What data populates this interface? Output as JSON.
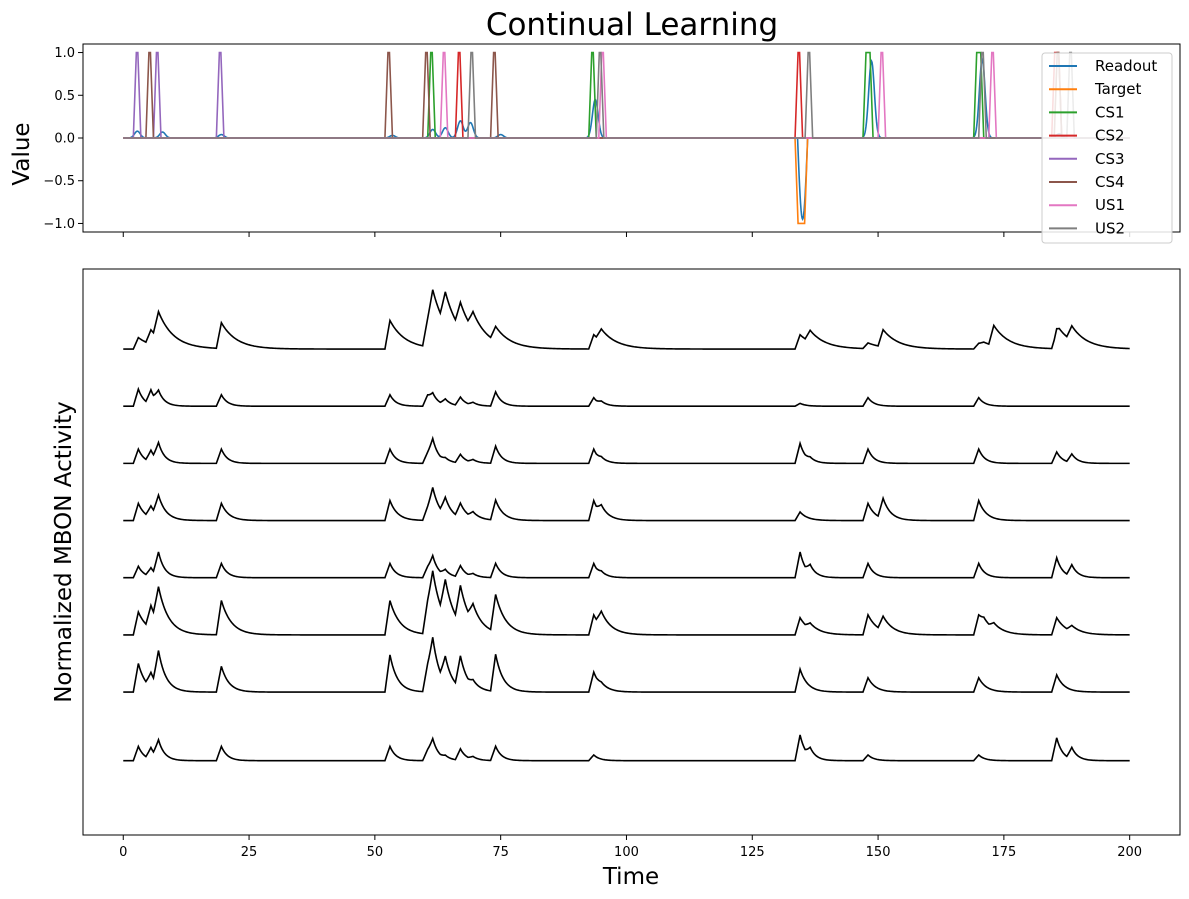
{
  "chart_data": [
    {
      "type": "line",
      "title": "Continual Learning",
      "ylabel": "Value",
      "xlabel": "",
      "xlim": [
        -8,
        210
      ],
      "ylim": [
        -1.1,
        1.1
      ],
      "yticks": [
        1.0,
        0.5,
        0.0,
        -0.5,
        -1.0
      ],
      "ytick_labels": [
        "1.0",
        "0.5",
        "0.0",
        "−0.5",
        "−1.0"
      ],
      "xticks": [
        0,
        25,
        50,
        75,
        100,
        125,
        150,
        175,
        200
      ],
      "show_xtick_labels": false,
      "grid": false,
      "legend": "top-right",
      "series": [
        {
          "name": "Readout",
          "color": "#1f77b4",
          "kind": "readout"
        },
        {
          "name": "Target",
          "color": "#ff7f0e",
          "kind": "target",
          "pulses": [
            [
              133.5,
              136.0,
              -1
            ]
          ]
        },
        {
          "name": "CS1",
          "color": "#2ca02c",
          "pulses": [
            [
              60.5,
              62.0,
              1
            ],
            [
              92.5,
              94.0,
              1
            ],
            [
              147.0,
              149.0,
              1
            ],
            [
              169.0,
              171.0,
              1
            ]
          ]
        },
        {
          "name": "CS2",
          "color": "#d62728",
          "pulses": [
            [
              66.0,
              67.5,
              1
            ],
            [
              133.5,
              135.0,
              1
            ],
            [
              184.5,
              186.5,
              1
            ]
          ]
        },
        {
          "name": "CS3",
          "color": "#9467bd",
          "pulses": [
            [
              2.0,
              3.5,
              1
            ],
            [
              6.0,
              7.5,
              1
            ],
            [
              18.5,
              20.0,
              1
            ]
          ]
        },
        {
          "name": "CS4",
          "color": "#8c564b",
          "pulses": [
            [
              4.5,
              6.0,
              1
            ],
            [
              52.0,
              53.5,
              1
            ],
            [
              59.5,
              61.0,
              1
            ],
            [
              73.0,
              74.5,
              1
            ],
            [
              185.0,
              186.5,
              1
            ]
          ]
        },
        {
          "name": "US1",
          "color": "#e377c2",
          "pulses": [
            [
              63.0,
              64.5,
              1
            ],
            [
              94.5,
              96.0,
              1
            ],
            [
              150.0,
              151.5,
              1
            ],
            [
              172.0,
              173.5,
              1
            ]
          ]
        },
        {
          "name": "US2",
          "color": "#7f7f7f",
          "pulses": [
            [
              68.5,
              70.0,
              1
            ],
            [
              94.0,
              95.5,
              1
            ],
            [
              135.5,
              137.0,
              1
            ],
            [
              170.0,
              171.5,
              1
            ],
            [
              187.5,
              189.0,
              1
            ]
          ]
        }
      ]
    },
    {
      "type": "line",
      "title": "",
      "ylabel": "Normalized MBON Activity",
      "xlabel": "Time",
      "xlim": [
        -8,
        210
      ],
      "xticks": [
        0,
        25,
        50,
        75,
        100,
        125,
        150,
        175,
        200
      ],
      "xtick_labels": [
        "0",
        "25",
        "50",
        "75",
        "100",
        "125",
        "150",
        "175",
        "200"
      ],
      "show_yticks": false,
      "grid": false,
      "line_color": "#000000",
      "events": [
        2,
        4.5,
        6,
        18.5,
        52,
        59.5,
        60.5,
        63,
        66,
        68.5,
        73,
        92.5,
        94,
        133.5,
        135.5,
        147,
        150,
        169,
        170,
        172,
        184.5,
        185,
        187.5
      ],
      "traces": [
        {
          "baseline": 9.0,
          "weights": [
            0.2,
            0.25,
            0.45,
            0.45,
            0.5,
            0.5,
            0.65,
            0.55,
            0.45,
            0.3,
            0.25,
            0.25,
            0.2,
            0.25,
            0.2,
            0.1,
            0.3,
            0.1,
            0.05,
            0.35,
            0.3,
            0.1,
            0.25
          ],
          "tau": 3.0
        },
        {
          "baseline": 8.0,
          "weights": [
            0.3,
            0.25,
            0.2,
            0.2,
            0.2,
            0.2,
            0.15,
            0.1,
            0.15,
            0.05,
            0.25,
            0.15,
            0.05,
            0.05,
            0.0,
            0.15,
            0.0,
            0.15,
            0.0,
            0.0,
            0.0,
            0.0,
            0.0
          ],
          "tau": 1.2
        },
        {
          "baseline": 7.0,
          "weights": [
            0.25,
            0.2,
            0.3,
            0.25,
            0.25,
            0.2,
            0.35,
            0.05,
            0.15,
            0.05,
            0.3,
            0.25,
            0.05,
            0.35,
            0.05,
            0.25,
            0.0,
            0.25,
            0.0,
            0.0,
            0.2,
            0.0,
            0.15
          ],
          "tau": 1.2
        },
        {
          "baseline": 6.0,
          "weights": [
            0.3,
            0.2,
            0.35,
            0.3,
            0.35,
            0.25,
            0.45,
            0.3,
            0.25,
            0.1,
            0.35,
            0.35,
            0.15,
            0.15,
            0.0,
            0.3,
            0.35,
            0.35,
            0.0,
            0.0,
            0.0,
            0.0,
            0.0
          ],
          "tau": 1.5
        },
        {
          "baseline": 5.0,
          "weights": [
            0.2,
            0.15,
            0.4,
            0.25,
            0.25,
            0.2,
            0.3,
            0.1,
            0.2,
            0.05,
            0.25,
            0.25,
            0.05,
            0.45,
            0.15,
            0.25,
            0.0,
            0.25,
            0.0,
            0.0,
            0.35,
            0.0,
            0.2
          ],
          "tau": 1.2
        },
        {
          "baseline": 4.0,
          "weights": [
            0.4,
            0.4,
            0.6,
            0.6,
            0.6,
            0.6,
            0.75,
            0.65,
            0.65,
            0.3,
            0.65,
            0.35,
            0.25,
            0.3,
            0.1,
            0.35,
            0.25,
            0.35,
            0.1,
            0.1,
            0.3,
            0.0,
            0.1
          ],
          "tau": 2.0
        },
        {
          "baseline": 3.0,
          "weights": [
            0.5,
            0.25,
            0.6,
            0.45,
            0.65,
            0.5,
            0.7,
            0.45,
            0.55,
            0.1,
            0.65,
            0.35,
            0.05,
            0.4,
            0.0,
            0.25,
            0.0,
            0.25,
            0.0,
            0.0,
            0.3,
            0.0,
            0.0
          ],
          "tau": 1.5
        },
        {
          "baseline": 1.8,
          "weights": [
            0.25,
            0.2,
            0.3,
            0.25,
            0.25,
            0.2,
            0.3,
            0.05,
            0.2,
            0.05,
            0.25,
            0.1,
            0.0,
            0.45,
            0.15,
            0.1,
            0.0,
            0.1,
            0.0,
            0.0,
            0.4,
            0.0,
            0.2
          ],
          "tau": 1.2
        }
      ]
    }
  ]
}
